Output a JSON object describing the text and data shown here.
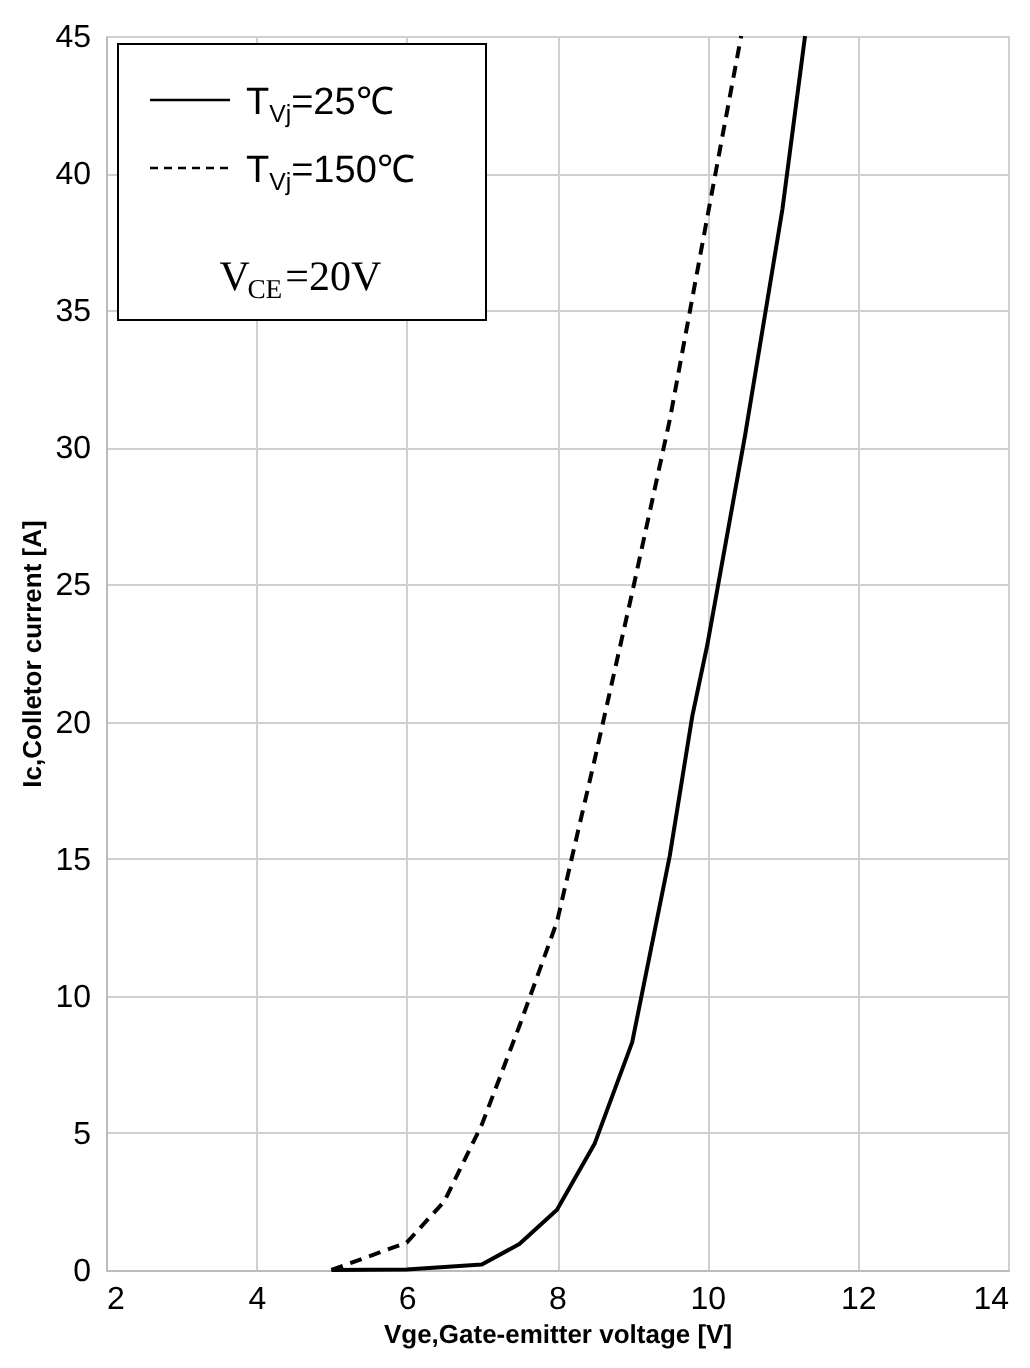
{
  "chart_data": {
    "type": "line",
    "xlabel": "Vge,Gate-emitter voltage [V]",
    "ylabel": "Ic,Colletor current [A]",
    "xlim": [
      2,
      14
    ],
    "xticks": [
      2,
      4,
      6,
      8,
      10,
      12,
      14
    ],
    "ylim": [
      0,
      45
    ],
    "yticks": [
      0,
      5,
      10,
      15,
      20,
      25,
      30,
      35,
      40,
      45
    ],
    "grid": true,
    "legend": "top left",
    "marker": "none",
    "annotations": [
      "V$_{CE}$=20V"
    ],
    "series": [
      {
        "name": "T$_{Vj}$=25℃",
        "color": "#000000",
        "line_style": "solid",
        "x": [
          5,
          6,
          7,
          7.5,
          8,
          8.5,
          9,
          9.5,
          9.8,
          10,
          10.5,
          11,
          11.3
        ],
        "values": [
          0,
          0.02,
          0.2,
          0.95,
          2.2,
          4.6,
          8.3,
          15.1,
          20.2,
          22.8,
          30.4,
          38.7,
          45
        ]
      },
      {
        "name": "T$_{Vj}$=150℃",
        "color": "#000000",
        "line_style": "dashed",
        "x": [
          5,
          5.5,
          6,
          6.5,
          7,
          7.5,
          8,
          8.5,
          9,
          9.5,
          10,
          10.45
        ],
        "values": [
          0,
          0.5,
          1.0,
          2.5,
          5.3,
          8.9,
          12.7,
          18.6,
          24.7,
          31,
          38.4,
          45
        ]
      }
    ]
  }
}
